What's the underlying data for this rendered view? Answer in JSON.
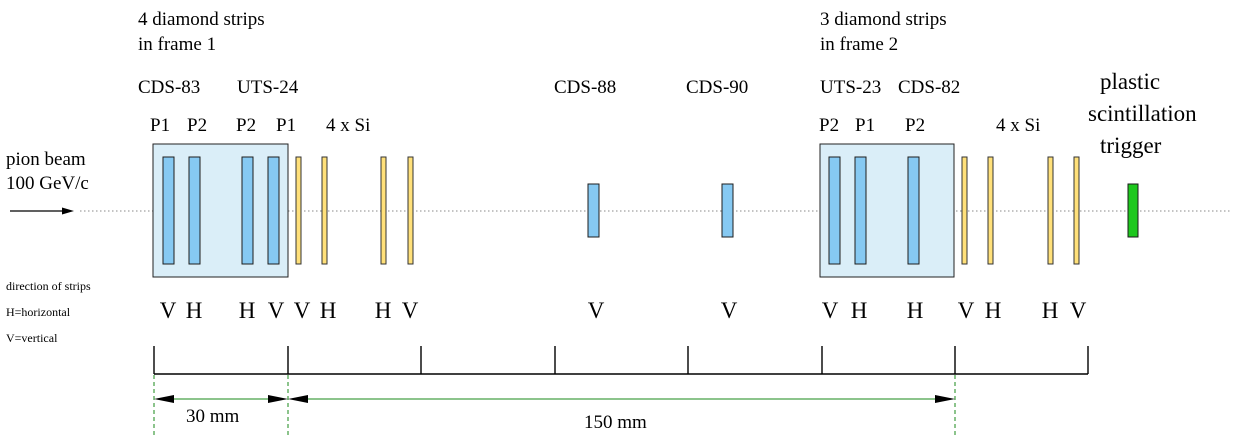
{
  "frame1_caption": [
    "4 diamond strips",
    "in frame 1"
  ],
  "frame2_caption": [
    "3 diamond strips",
    "in frame 2"
  ],
  "labels": {
    "cds83": "CDS-83",
    "uts24": "UTS-24",
    "cds88": "CDS-88",
    "cds90": "CDS-90",
    "uts23": "UTS-23",
    "cds82": "CDS-82",
    "trigger": [
      "plastic",
      "scintillation",
      "trigger"
    ]
  },
  "planes_left": [
    "P1",
    "P2",
    "P2",
    "P1"
  ],
  "planes_right": [
    "P2",
    "P1",
    "P2"
  ],
  "si_left": "4 x Si",
  "si_right": "4 x Si",
  "beam": [
    "pion beam",
    "100 GeV/c"
  ],
  "legend": [
    "direction of strips",
    "H=horizontal",
    "V=vertical"
  ],
  "orientations": [
    "V",
    "H",
    "H",
    "V",
    "V",
    "H",
    "H",
    "V",
    "V",
    "V",
    "V",
    "H",
    "H",
    "V",
    "H",
    "H",
    "V"
  ],
  "dimensions": [
    "30 mm",
    "150 mm"
  ],
  "colors": {
    "diamond": "#86c9f2",
    "frame": "#daeef8",
    "silicon": "#ffe07a",
    "trigger": "#1ec81e",
    "dimension_line": "#1a8a1a"
  }
}
